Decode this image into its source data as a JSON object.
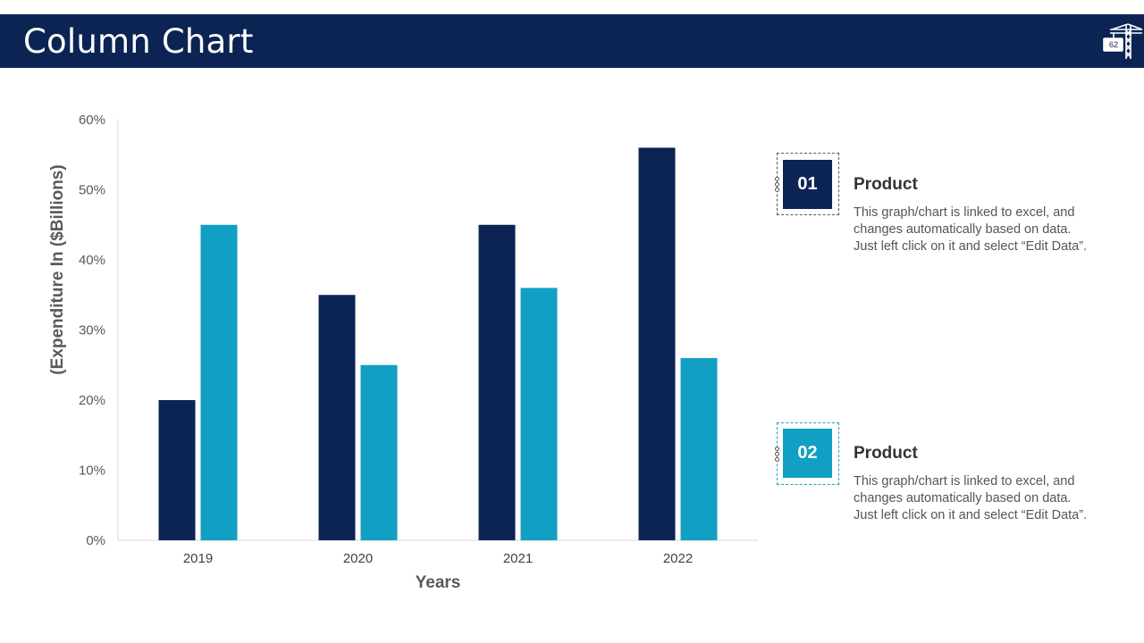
{
  "header": {
    "title": "Column Chart",
    "page_number": "62",
    "logo_icon": "crane-icon"
  },
  "chart_data": {
    "type": "bar",
    "categories": [
      "2019",
      "2020",
      "2021",
      "2022"
    ],
    "series": [
      {
        "name": "Product 01",
        "color": "#0c2454",
        "values": [
          20,
          35,
          45,
          56
        ]
      },
      {
        "name": "Product 02",
        "color": "#119fc3",
        "values": [
          45,
          25,
          36,
          26
        ]
      }
    ],
    "ylim": [
      0,
      60
    ],
    "yticks": [
      "0%",
      "10%",
      "20%",
      "30%",
      "40%",
      "50%",
      "60%"
    ],
    "xlabel": "Years",
    "ylabel": "(Expenditure In ($Billions)",
    "title": "",
    "grid": false
  },
  "legend": [
    {
      "number": "01",
      "color": "#0c2454",
      "heading": "Product",
      "lines": [
        "This graph/chart is linked to excel, and",
        "changes automatically based on data.",
        "Just left click on it and select “Edit Data”."
      ]
    },
    {
      "number": "02",
      "color": "#119fc3",
      "heading": "Product",
      "lines": [
        "This graph/chart is linked to excel, and",
        "changes automatically based on data.",
        "Just left click on it and select “Edit Data”."
      ]
    }
  ]
}
